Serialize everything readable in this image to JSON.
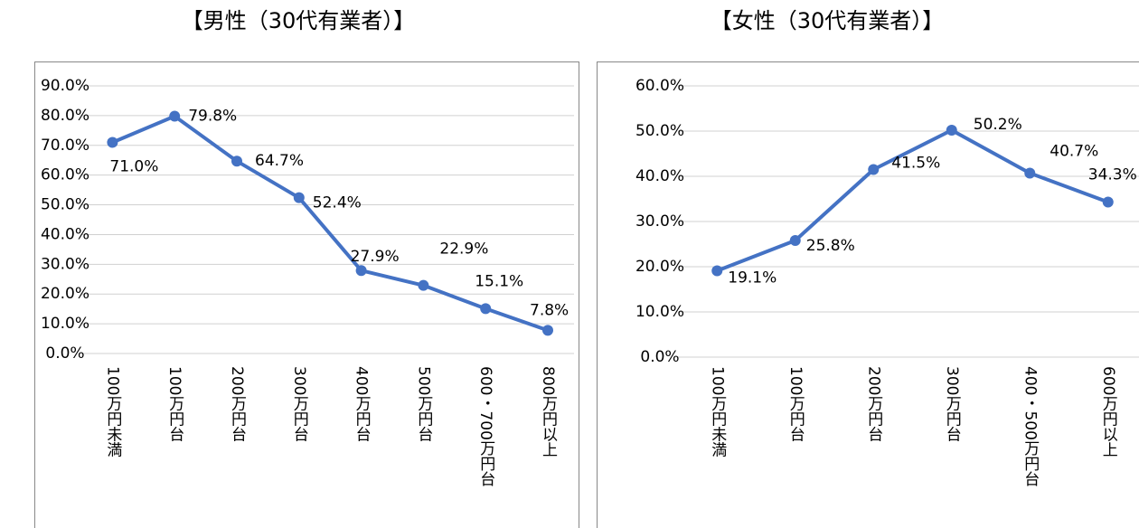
{
  "chart_data": [
    {
      "type": "line",
      "title": "【男性（30代有業者）】",
      "categories": [
        "100万円未満",
        "100万円台",
        "200万円台",
        "300万円台",
        "400万円台",
        "500万円台",
        "600・700万円台",
        "800万円以上"
      ],
      "values": [
        71.0,
        79.8,
        64.7,
        52.4,
        27.9,
        22.9,
        15.1,
        7.8
      ],
      "value_labels": [
        "71.0%",
        "79.8%",
        "64.7%",
        "52.4%",
        "27.9%",
        "22.9%",
        "15.1%",
        "7.8%"
      ],
      "color": "#4472c4",
      "ylim": [
        0,
        90
      ],
      "yticks": [
        {
          "value": 0,
          "label": "0.0%"
        },
        {
          "value": 10,
          "label": "10.0%"
        },
        {
          "value": 20,
          "label": "20.0%"
        },
        {
          "value": 30,
          "label": "30.0%"
        },
        {
          "value": 40,
          "label": "40.0%"
        },
        {
          "value": 50,
          "label": "50.0%"
        },
        {
          "value": 60,
          "label": "60.0%"
        },
        {
          "value": 70,
          "label": "70.0%"
        },
        {
          "value": 80,
          "label": "80.0%"
        },
        {
          "value": 90,
          "label": "90.0%"
        }
      ],
      "grid": true
    },
    {
      "type": "line",
      "title": "【女性（30代有業者）】",
      "categories": [
        "100万円未満",
        "100万円台",
        "200万円台",
        "300万円台",
        "400・500万円台",
        "600万円以上"
      ],
      "values": [
        19.1,
        25.8,
        41.5,
        50.2,
        40.7,
        34.3
      ],
      "value_labels": [
        "19.1%",
        "25.8%",
        "41.5%",
        "50.2%",
        "40.7%",
        "34.3%"
      ],
      "color": "#4472c4",
      "ylim": [
        0,
        60
      ],
      "yticks": [
        {
          "value": 0,
          "label": "0.0%"
        },
        {
          "value": 10,
          "label": "10.0%"
        },
        {
          "value": 20,
          "label": "20.0%"
        },
        {
          "value": 30,
          "label": "30.0%"
        },
        {
          "value": 40,
          "label": "40.0%"
        },
        {
          "value": 50,
          "label": "50.0%"
        },
        {
          "value": 60,
          "label": "60.0%"
        }
      ],
      "grid": true
    }
  ]
}
